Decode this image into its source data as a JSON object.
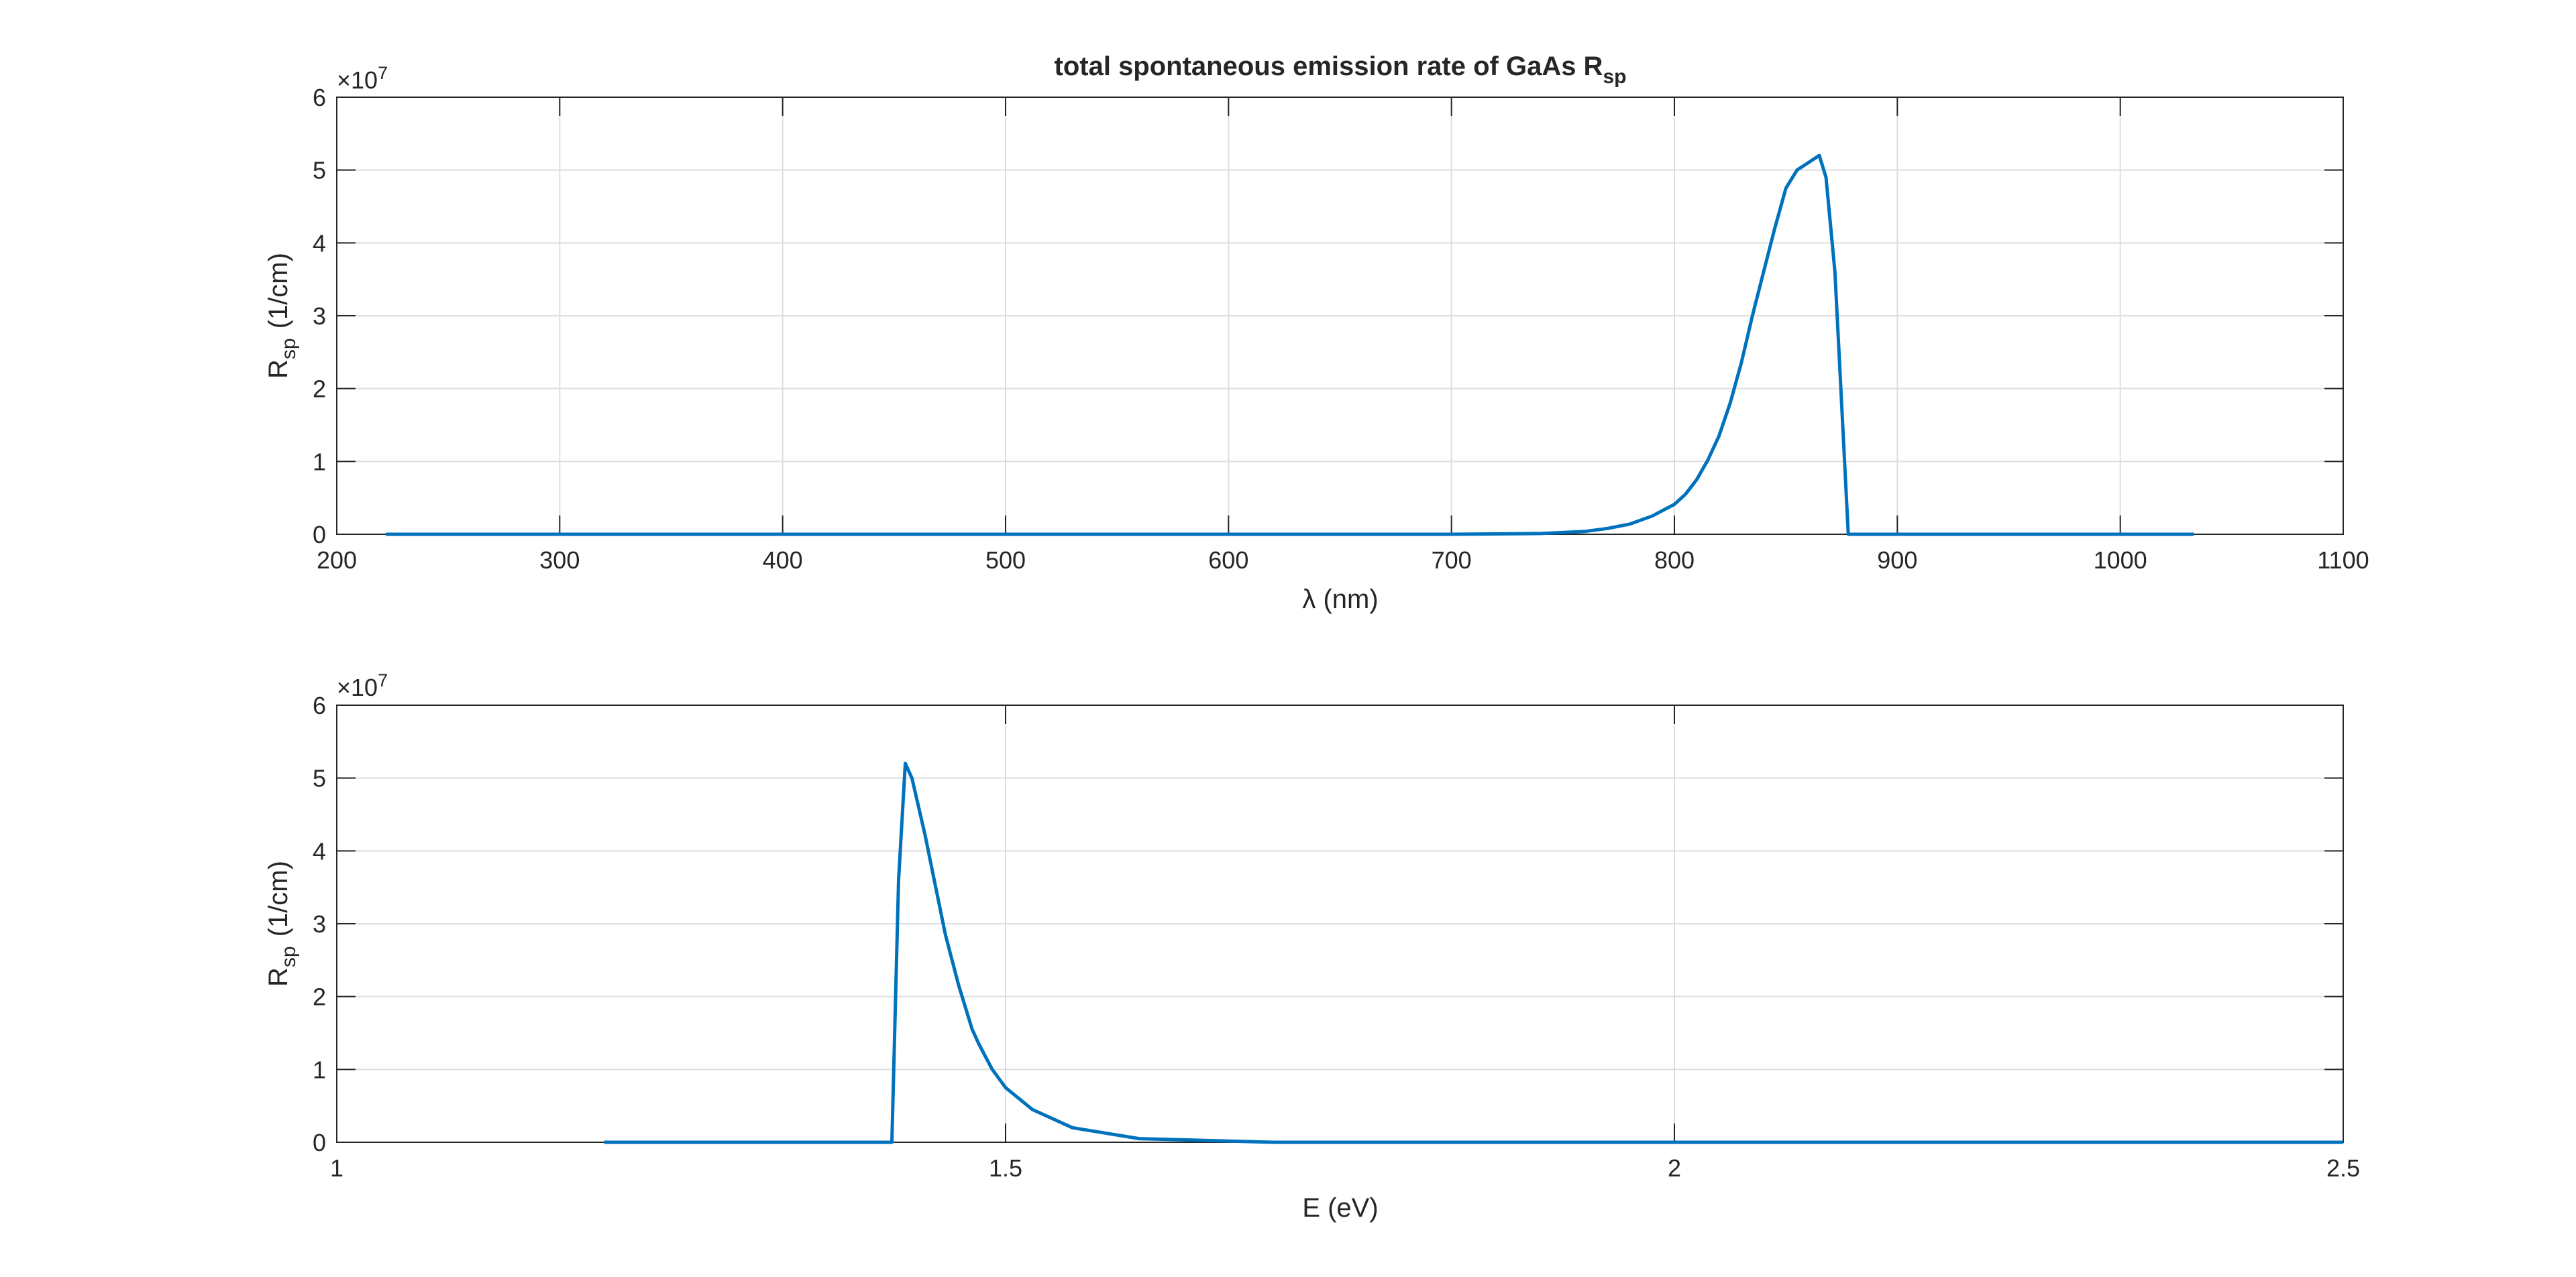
{
  "figure_title": "total spontaneous emission rate of GaAs R",
  "figure_title_sub": "sp",
  "colors": {
    "line": "#0072BD",
    "grid": "#dedede",
    "axis": "#262626"
  },
  "chart_data": [
    {
      "type": "line",
      "title": "total spontaneous emission rate of GaAs R_sp",
      "xlabel": "λ (nm)",
      "ylabel_main": "R",
      "ylabel_sub": "sp",
      "ylabel_unit": "(1/cm)",
      "exponent_label": "×10",
      "exponent_power": "7",
      "xlim": [
        200,
        1100
      ],
      "ylim": [
        0,
        6
      ],
      "xticks": [
        200,
        300,
        400,
        500,
        600,
        700,
        800,
        900,
        1000,
        1100
      ],
      "yticks": [
        0,
        1,
        2,
        3,
        4,
        5,
        6
      ],
      "grid": true,
      "series": [
        {
          "x": [
            222,
            700,
            740,
            760,
            770,
            780,
            790,
            800,
            805,
            810,
            815,
            820,
            825,
            830,
            835,
            840,
            845,
            850,
            855,
            860,
            865,
            868,
            872,
            878,
            1033
          ],
          "y": [
            0,
            0,
            0.01,
            0.04,
            0.08,
            0.14,
            0.25,
            0.41,
            0.55,
            0.75,
            1.02,
            1.35,
            1.8,
            2.35,
            3.0,
            3.6,
            4.2,
            4.75,
            5.0,
            5.1,
            5.2,
            4.9,
            3.6,
            0,
            0
          ]
        }
      ]
    },
    {
      "type": "line",
      "xlabel": "E (eV)",
      "ylabel_main": "R",
      "ylabel_sub": "sp",
      "ylabel_unit": "(1/cm)",
      "exponent_label": "×10",
      "exponent_power": "7",
      "xlim": [
        1,
        2.5
      ],
      "ylim": [
        0,
        6
      ],
      "xticks": [
        1,
        1.5,
        2,
        2.5
      ],
      "yticks": [
        0,
        1,
        2,
        3,
        4,
        5,
        6
      ],
      "grid": true,
      "series": [
        {
          "x": [
            1.2,
            1.415,
            1.42,
            1.425,
            1.43,
            1.435,
            1.44,
            1.445,
            1.45,
            1.455,
            1.46,
            1.465,
            1.47,
            1.475,
            1.48,
            1.49,
            1.5,
            1.52,
            1.55,
            1.6,
            1.7,
            2.5
          ],
          "y": [
            0,
            0,
            3.6,
            5.2,
            5.0,
            4.6,
            4.2,
            3.75,
            3.3,
            2.85,
            2.5,
            2.15,
            1.85,
            1.55,
            1.35,
            1.0,
            0.75,
            0.45,
            0.2,
            0.05,
            0,
            0
          ]
        }
      ]
    }
  ]
}
